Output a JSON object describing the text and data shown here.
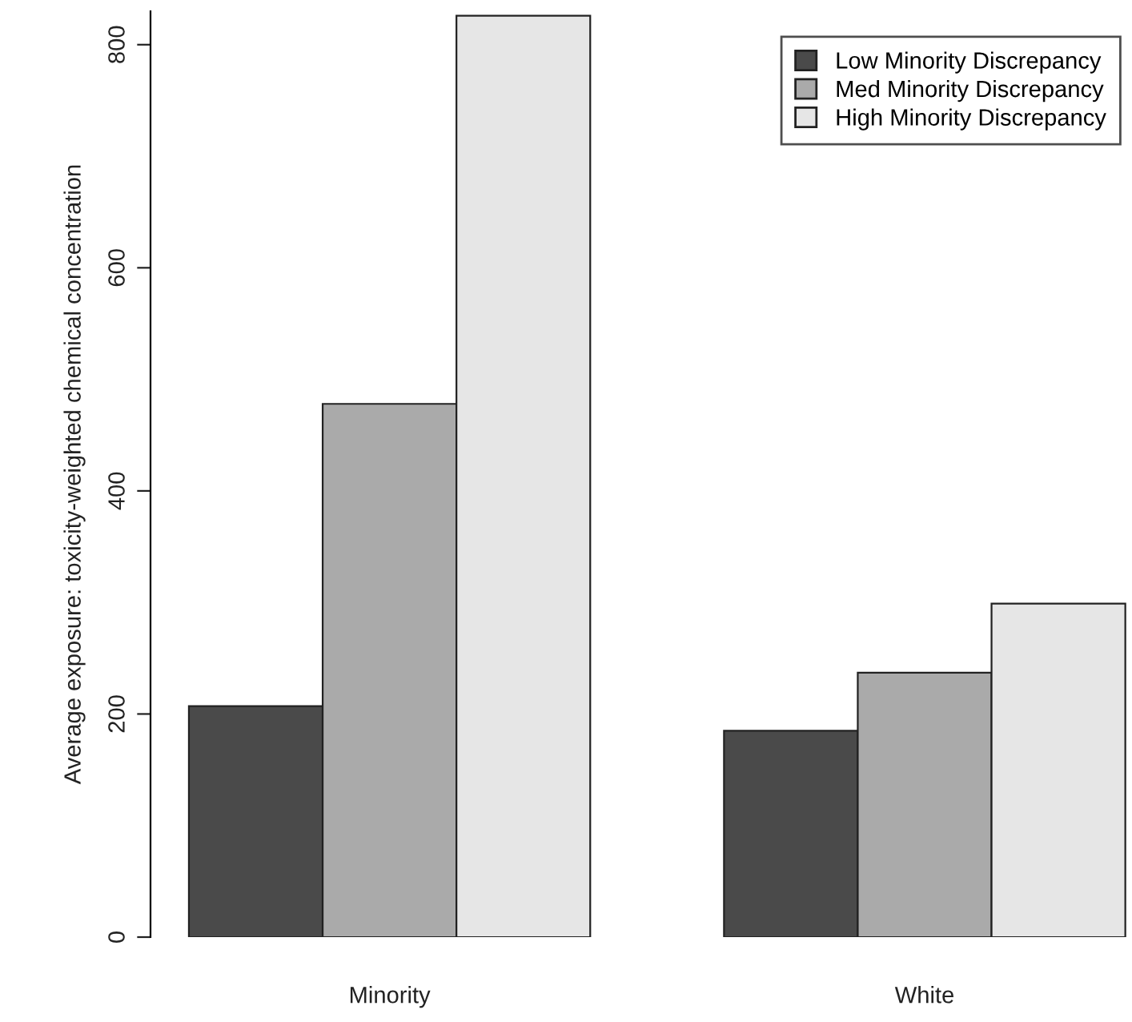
{
  "chart_data": {
    "type": "bar",
    "ylabel": "Average exposure: toxicity-weighted chemical concentration",
    "categories": [
      "Minority",
      "White"
    ],
    "series": [
      {
        "name": "Low Minority Discrepancy",
        "color": "#4a4a4a",
        "values": [
          207,
          185
        ]
      },
      {
        "name": "Med Minority Discrepancy",
        "color": "#aaaaaa",
        "values": [
          478,
          237
        ]
      },
      {
        "name": "High Minority Discrepancy",
        "color": "#e6e6e6",
        "values": [
          826,
          299
        ]
      }
    ],
    "ylim": [
      0,
      830
    ],
    "yticks": [
      0,
      200,
      400,
      600,
      800
    ],
    "grid": false,
    "legend": "top right"
  }
}
